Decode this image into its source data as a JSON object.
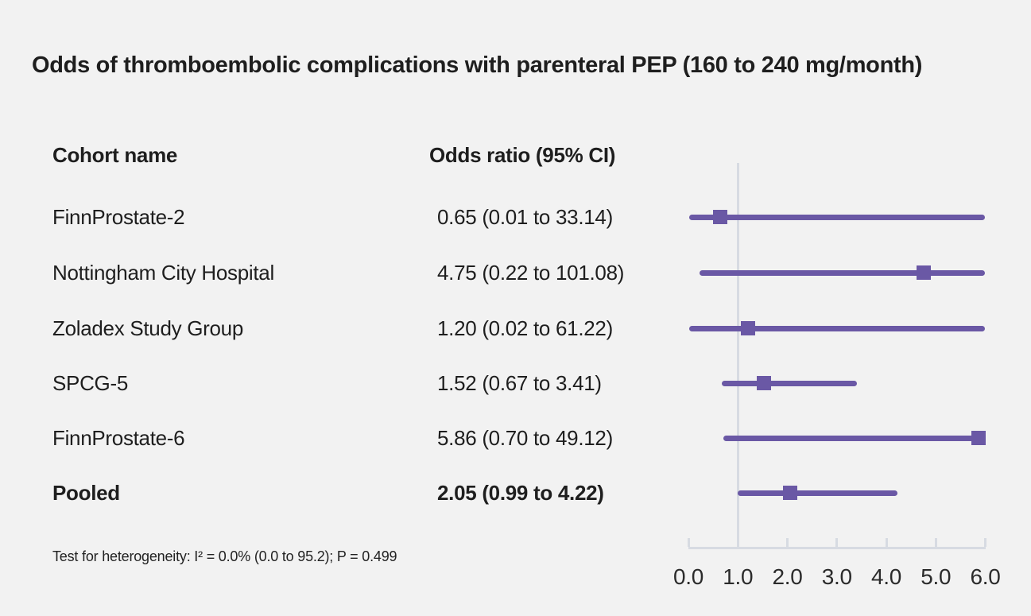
{
  "title": "Odds of thromboembolic complications with parenteral PEP (160 to 240 mg/month)",
  "columns": {
    "cohort": "Cohort name",
    "odds": "Odds ratio (95% CI)"
  },
  "footnote": "Test for heterogeneity: I² = 0.0% (0.0 to 95.2); P = 0.499",
  "chart_data": {
    "type": "scatter",
    "subtype": "forest-plot",
    "title": "Odds of thromboembolic complications with parenteral PEP (160 to 240 mg/month)",
    "xlabel": "",
    "ylabel": "",
    "xlim": [
      0.0,
      6.0
    ],
    "x_ticks": [
      "0.0",
      "1.0",
      "2.0",
      "3.0",
      "4.0",
      "5.0",
      "6.0"
    ],
    "x_tick_values": [
      0,
      1,
      2,
      3,
      4,
      5,
      6
    ],
    "reference_line_x": 1.0,
    "grid": false,
    "legend_position": "none",
    "rows": [
      {
        "label": "FinnProstate-2",
        "display": "0.65 (0.01 to 33.14)",
        "estimate": 0.65,
        "ci_low": 0.01,
        "ci_high": 33.14,
        "bold": false
      },
      {
        "label": "Nottingham City Hospital",
        "display": "4.75 (0.22 to 101.08)",
        "estimate": 4.75,
        "ci_low": 0.22,
        "ci_high": 101.08,
        "bold": false
      },
      {
        "label": "Zoladex Study Group",
        "display": "1.20 (0.02 to 61.22)",
        "estimate": 1.2,
        "ci_low": 0.02,
        "ci_high": 61.22,
        "bold": false
      },
      {
        "label": "SPCG-5",
        "display": "1.52 (0.67 to 3.41)",
        "estimate": 1.52,
        "ci_low": 0.67,
        "ci_high": 3.41,
        "bold": false
      },
      {
        "label": "FinnProstate-6",
        "display": "5.86 (0.70 to 49.12)",
        "estimate": 5.86,
        "ci_low": 0.7,
        "ci_high": 49.12,
        "bold": false
      },
      {
        "label": "Pooled",
        "display": "2.05 (0.99 to 4.22)",
        "estimate": 2.05,
        "ci_low": 0.99,
        "ci_high": 4.22,
        "bold": true
      }
    ],
    "colors": {
      "marker": "#6a58a5",
      "ci_line": "#6a58a5",
      "reference_line": "#d7dbe2",
      "axis": "#d7dbe2",
      "background": "#f2f2f2",
      "text": "#1e1e1e"
    }
  }
}
